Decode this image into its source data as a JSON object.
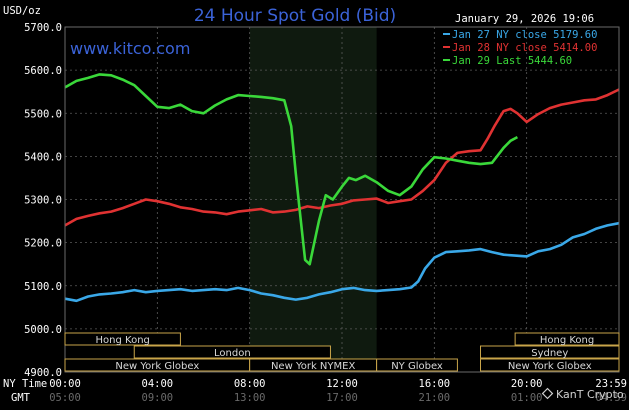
{
  "chart_data": {
    "type": "line",
    "title": "24 Hour Spot Gold (Bid)",
    "ylabel": "USD/oz",
    "site": "www.kitco.com",
    "timestamp": "January 29, 2026 19:06",
    "watermark": "KanT Crypto",
    "ylim": [
      4900,
      5700
    ],
    "yticks": [
      "5700.0",
      "5600.0",
      "5500.0",
      "5400.0",
      "5300.0",
      "5200.0",
      "5100.0",
      "5000.0",
      "4900.0"
    ],
    "xlim": [
      0,
      24
    ],
    "x_axis_rows": [
      {
        "label": "NY Time",
        "ticks": [
          "00:00",
          "04:00",
          "08:00",
          "12:00",
          "16:00",
          "20:00",
          "23:59"
        ],
        "color": "#ffffff"
      },
      {
        "label": "GMT",
        "ticks": [
          "05:00",
          "09:00",
          "13:00",
          "17:00",
          "21:00",
          "01:00",
          "04:59"
        ],
        "color": "#6a6a6a"
      }
    ],
    "highlight_range": [
      8,
      13.5
    ],
    "legend_position": "top-right",
    "legend": [
      {
        "label": "Jan 27 NY close 5179.60",
        "color": "#3aa8e8"
      },
      {
        "label": "Jan 28 NY close 5414.00",
        "color": "#e03232"
      },
      {
        "label": "Jan 29 Last 5444.60",
        "color": "#3ad83a"
      }
    ],
    "series": [
      {
        "legend_index": 0,
        "color": "#3aa8e8",
        "x": [
          0,
          0.5,
          1,
          1.5,
          2,
          2.5,
          3,
          3.5,
          4,
          4.5,
          5,
          5.5,
          6,
          6.5,
          7,
          7.5,
          8,
          8.5,
          9,
          9.5,
          10,
          10.5,
          11,
          11.5,
          12,
          12.5,
          13,
          13.5,
          14,
          14.5,
          15,
          15.3,
          15.6,
          16,
          16.5,
          17,
          17.5,
          18,
          18.5,
          19,
          19.5,
          20,
          20.5,
          21,
          21.5,
          22,
          22.5,
          23,
          23.5,
          24
        ],
        "y": [
          5070,
          5065,
          5075,
          5080,
          5082,
          5085,
          5090,
          5085,
          5088,
          5090,
          5092,
          5088,
          5090,
          5092,
          5090,
          5095,
          5090,
          5082,
          5078,
          5072,
          5068,
          5072,
          5080,
          5085,
          5092,
          5095,
          5090,
          5088,
          5090,
          5092,
          5096,
          5110,
          5140,
          5165,
          5178,
          5180,
          5182,
          5185,
          5178,
          5172,
          5170,
          5168,
          5180,
          5185,
          5195,
          5212,
          5220,
          5232,
          5240,
          5245
        ]
      },
      {
        "legend_index": 1,
        "color": "#e03232",
        "x": [
          0,
          0.5,
          1,
          1.5,
          2,
          2.5,
          3,
          3.5,
          4,
          4.5,
          5,
          5.5,
          6,
          6.5,
          7,
          7.5,
          8,
          8.5,
          9,
          9.5,
          10,
          10.5,
          11,
          11.5,
          12,
          12.5,
          13,
          13.5,
          14,
          14.5,
          15,
          15.5,
          16,
          16.5,
          17,
          17.5,
          18,
          18.3,
          18.6,
          19,
          19.3,
          19.6,
          20,
          20.5,
          21,
          21.5,
          22,
          22.5,
          23,
          23.5,
          24
        ],
        "y": [
          5240,
          5255,
          5262,
          5268,
          5272,
          5280,
          5290,
          5300,
          5296,
          5290,
          5282,
          5278,
          5272,
          5270,
          5266,
          5272,
          5275,
          5278,
          5270,
          5272,
          5276,
          5284,
          5280,
          5286,
          5290,
          5298,
          5300,
          5302,
          5292,
          5296,
          5300,
          5320,
          5345,
          5385,
          5408,
          5412,
          5414,
          5440,
          5470,
          5505,
          5510,
          5500,
          5480,
          5498,
          5512,
          5520,
          5525,
          5530,
          5532,
          5542,
          5555
        ]
      },
      {
        "legend_index": 2,
        "color": "#3ad83a",
        "x": [
          0,
          0.5,
          1,
          1.5,
          2,
          2.5,
          3,
          3.5,
          4,
          4.5,
          5,
          5.5,
          6,
          6.5,
          7,
          7.5,
          8,
          8.5,
          9,
          9.5,
          9.8,
          10,
          10.2,
          10.4,
          10.6,
          10.8,
          11,
          11.3,
          11.6,
          12,
          12.3,
          12.6,
          13,
          13.5,
          14,
          14.5,
          15,
          15.5,
          16,
          16.5,
          17,
          17.5,
          18,
          18.5,
          19,
          19.3,
          19.6
        ],
        "y": [
          5560,
          5575,
          5582,
          5590,
          5588,
          5578,
          5565,
          5540,
          5515,
          5512,
          5520,
          5505,
          5500,
          5518,
          5532,
          5542,
          5540,
          5538,
          5535,
          5530,
          5470,
          5360,
          5260,
          5160,
          5150,
          5200,
          5250,
          5310,
          5300,
          5330,
          5350,
          5345,
          5355,
          5340,
          5320,
          5310,
          5330,
          5370,
          5398,
          5395,
          5390,
          5385,
          5382,
          5385,
          5420,
          5436,
          5444.6
        ]
      }
    ],
    "session_rows": [
      {
        "y": 0,
        "bars": [
          {
            "label": "Hong Kong",
            "start": 0,
            "end": 5
          },
          {
            "label": "Hong Kong",
            "start": 19.5,
            "end": 24
          }
        ]
      },
      {
        "y": 1,
        "bars": [
          {
            "label": "London",
            "start": 3,
            "end": 11.5
          },
          {
            "label": "Sydney",
            "start": 18,
            "end": 24
          }
        ]
      },
      {
        "y": 2,
        "bars": [
          {
            "label": "New York Globex",
            "start": 0,
            "end": 8
          },
          {
            "label": "New York NYMEX",
            "start": 8,
            "end": 13.5
          },
          {
            "label": "NY Globex",
            "start": 13.5,
            "end": 17
          },
          {
            "label": "New York Globex",
            "start": 18,
            "end": 24
          }
        ]
      }
    ]
  }
}
